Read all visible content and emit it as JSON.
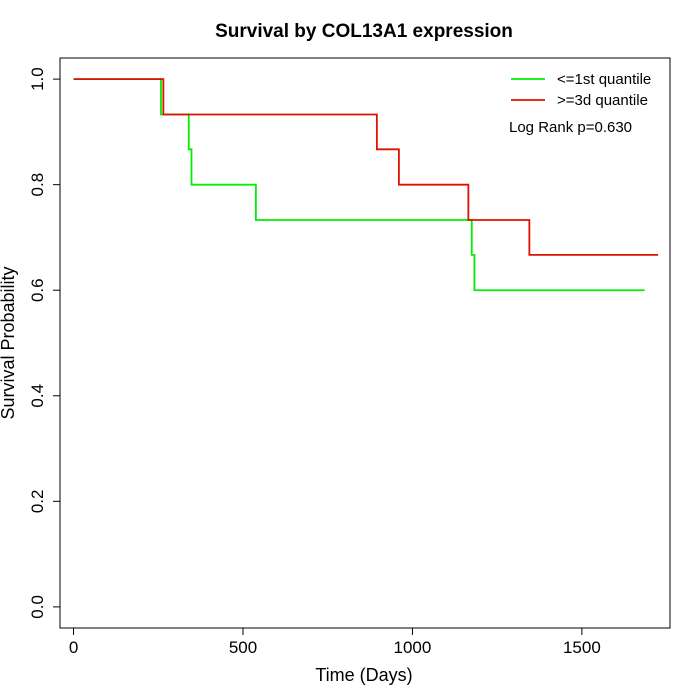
{
  "chart_data": {
    "type": "line",
    "step": true,
    "title": "Survival by COL13A1 expression",
    "xlabel": "Time (Days)",
    "ylabel": "Survival Probability",
    "xlim": [
      -40,
      1760
    ],
    "ylim": [
      -0.04,
      1.04
    ],
    "x_ticks": [
      0,
      500,
      1000,
      1500
    ],
    "y_ticks": [
      0.0,
      0.2,
      0.4,
      0.6,
      0.8,
      1.0
    ],
    "x_tick_labels": [
      "0",
      "500",
      "1000",
      "1500"
    ],
    "y_tick_labels": [
      "0.0",
      "0.2",
      "0.4",
      "0.6",
      "0.8",
      "1.0"
    ],
    "grid": false,
    "legend_position": "top-right",
    "annotation": "Log Rank p=0.630",
    "series": [
      {
        "name": "<=1st quantile",
        "color": "#00ee00",
        "x": [
          0,
          258,
          340,
          348,
          538,
          1175,
          1183,
          1685
        ],
        "y": [
          1.0,
          0.933,
          0.867,
          0.8,
          0.733,
          0.667,
          0.6,
          0.6
        ]
      },
      {
        "name": ">=3d quantile",
        "color": "#dd1100",
        "x": [
          0,
          265,
          895,
          960,
          1165,
          1345,
          1725
        ],
        "y": [
          1.0,
          0.933,
          0.867,
          0.8,
          0.733,
          0.667,
          0.667
        ]
      }
    ]
  }
}
